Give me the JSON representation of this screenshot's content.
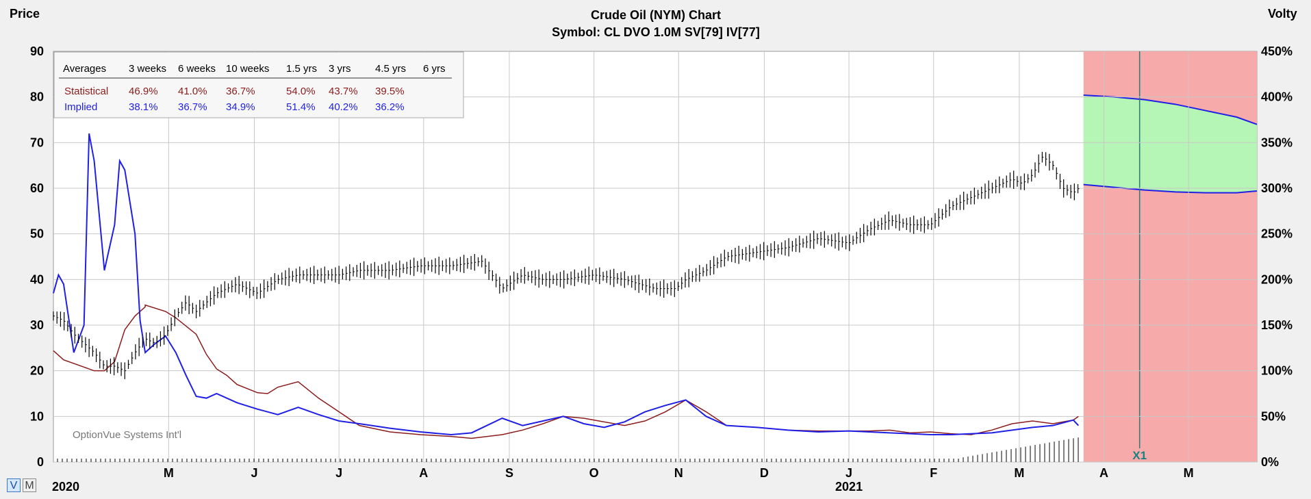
{
  "chart_data": {
    "type": "line",
    "title": "Crude Oil (NYM) Chart",
    "subtitle": "Symbol: CL  DVO 1.0M  SV[79]  IV[77]",
    "left_axis": {
      "label": "Price",
      "ticks": [
        "90",
        "80",
        "70",
        "60",
        "50",
        "40",
        "30",
        "20",
        "10",
        "0"
      ],
      "range": [
        0,
        90
      ]
    },
    "right_axis": {
      "label": "Volty",
      "ticks": [
        "450%",
        "400%",
        "350%",
        "300%",
        "250%",
        "200%",
        "150%",
        "100%",
        "50%",
        "0%"
      ],
      "range": [
        0,
        450
      ]
    },
    "x_labels": [
      "M",
      "J",
      "J",
      "A",
      "S",
      "O",
      "N",
      "D",
      "J",
      "F",
      "M",
      "A",
      "M"
    ],
    "x_label_months": [
      2020.333,
      2020.417,
      2020.5,
      2020.583,
      2020.667,
      2020.75,
      2020.833,
      2020.917,
      2021.0,
      2021.083,
      2021.167,
      2021.25,
      2021.333
    ],
    "year_labels": [
      "2020",
      "2021"
    ],
    "year_label_months": [
      2020.22,
      2021.0
    ],
    "grid": true,
    "x_range": [
      2020.22,
      2021.4
    ],
    "projection_start": 2021.23,
    "projection_marker": {
      "label": "X1",
      "month": 2021.285
    },
    "legend_table": {
      "header": [
        "Averages",
        "3 weeks",
        "6 weeks",
        "10 weeks",
        "1.5 yrs",
        "3 yrs",
        "4.5 yrs",
        "6 yrs"
      ],
      "rows": [
        {
          "name": "Statistical",
          "values": [
            "46.9%",
            "41.0%",
            "36.7%",
            "54.0%",
            "43.7%",
            "39.5%",
            ""
          ]
        },
        {
          "name": "Implied",
          "values": [
            "38.1%",
            "36.7%",
            "34.9%",
            "51.4%",
            "40.2%",
            "36.2%",
            ""
          ]
        }
      ]
    },
    "watermark": "OptionVue Systems Int'l",
    "colors": {
      "price": "#000000",
      "statistical": "#8b1a1a",
      "implied": "#1f1fe6",
      "projection_bg": "#f7aaaa",
      "projection_band": "#b5f5b5"
    },
    "price_series": {
      "x": [
        2020.22,
        2020.23,
        2020.24,
        2020.25,
        2020.26,
        2020.27,
        2020.28,
        2020.29,
        2020.3,
        2020.31,
        2020.32,
        2020.33,
        2020.34,
        2020.35,
        2020.36,
        2020.38,
        2020.4,
        2020.42,
        2020.44,
        2020.46,
        2020.48,
        2020.5,
        2020.52,
        2020.55,
        2020.58,
        2020.61,
        2020.64,
        2020.66,
        2020.68,
        2020.7,
        2020.72,
        2020.75,
        2020.78,
        2020.81,
        2020.83,
        2020.84,
        2020.86,
        2020.88,
        2020.91,
        2020.94,
        2020.97,
        2021.0,
        2021.02,
        2021.04,
        2021.06,
        2021.08,
        2021.1,
        2021.12,
        2021.14,
        2021.16,
        2021.17,
        2021.18,
        2021.19,
        2021.2,
        2021.21,
        2021.22,
        2021.225
      ],
      "y": [
        32,
        31,
        28,
        26,
        24,
        21,
        21,
        20,
        24,
        27,
        26,
        28,
        32,
        35,
        33,
        37,
        39,
        37,
        40,
        41,
        41,
        41,
        42,
        42,
        43,
        43,
        44,
        38,
        41,
        40,
        40,
        41,
        40,
        38,
        38,
        40,
        42,
        45,
        46,
        47,
        49,
        48,
        51,
        53,
        52,
        52,
        56,
        58,
        60,
        62,
        61,
        63,
        67,
        65,
        60,
        59,
        60
      ]
    },
    "statistical_series": {
      "x": [
        2020.22,
        2020.23,
        2020.25,
        2020.26,
        2020.27,
        2020.28,
        2020.29,
        2020.3,
        2020.31,
        2020.31,
        2020.33,
        2020.34,
        2020.36,
        2020.37,
        2020.38,
        2020.39,
        2020.4,
        2020.42,
        2020.43,
        2020.44,
        2020.46,
        2020.48,
        2020.5,
        2020.52,
        2020.55,
        2020.58,
        2020.61,
        2020.63,
        2020.66,
        2020.68,
        2020.7,
        2020.72,
        2020.74,
        2020.76,
        2020.78,
        2020.8,
        2020.82,
        2020.84,
        2020.86,
        2020.88,
        2020.91,
        2020.94,
        2020.97,
        2021.0,
        2021.02,
        2021.04,
        2021.06,
        2021.08,
        2021.1,
        2021.12,
        2021.14,
        2021.16,
        2021.18,
        2021.2,
        2021.22,
        2021.225
      ],
      "y": [
        122,
        112,
        104,
        100,
        100,
        110,
        145,
        160,
        170,
        172,
        165,
        158,
        140,
        118,
        102,
        95,
        85,
        76,
        75,
        82,
        88,
        70,
        55,
        40,
        33,
        30,
        28,
        26,
        30,
        35,
        42,
        50,
        48,
        44,
        40,
        45,
        55,
        68,
        55,
        40,
        38,
        35,
        34,
        34,
        34,
        35,
        32,
        33,
        31,
        30,
        35,
        42,
        45,
        42,
        46,
        50
      ]
    },
    "implied_series": {
      "x": [
        2020.22,
        2020.225,
        2020.23,
        2020.24,
        2020.25,
        2020.255,
        2020.26,
        2020.27,
        2020.28,
        2020.285,
        2020.29,
        2020.3,
        2020.305,
        2020.31,
        2020.32,
        2020.33,
        2020.34,
        2020.35,
        2020.36,
        2020.37,
        2020.38,
        2020.4,
        2020.42,
        2020.44,
        2020.46,
        2020.48,
        2020.5,
        2020.52,
        2020.55,
        2020.58,
        2020.61,
        2020.63,
        2020.66,
        2020.68,
        2020.7,
        2020.72,
        2020.74,
        2020.76,
        2020.78,
        2020.8,
        2020.82,
        2020.84,
        2020.86,
        2020.88,
        2020.91,
        2020.94,
        2020.97,
        2021.0,
        2021.02,
        2021.04,
        2021.06,
        2021.08,
        2021.1,
        2021.12,
        2021.14,
        2021.16,
        2021.18,
        2021.2,
        2021.21,
        2021.22,
        2021.225
      ],
      "y": [
        185,
        205,
        195,
        120,
        150,
        360,
        330,
        210,
        260,
        330,
        320,
        250,
        155,
        120,
        130,
        138,
        120,
        95,
        72,
        70,
        75,
        65,
        58,
        52,
        60,
        52,
        45,
        42,
        37,
        33,
        30,
        32,
        48,
        40,
        45,
        50,
        42,
        38,
        44,
        55,
        62,
        68,
        50,
        40,
        38,
        35,
        33,
        34,
        33,
        32,
        31,
        30,
        30,
        31,
        32,
        35,
        38,
        40,
        43,
        46,
        40
      ]
    },
    "projection_band": {
      "x": [
        2021.23,
        2021.26,
        2021.29,
        2021.32,
        2021.35,
        2021.38,
        2021.4
      ],
      "upper": [
        402,
        400,
        397,
        392,
        385,
        378,
        370
      ],
      "lower": [
        304,
        301,
        298,
        296,
        295,
        295,
        297
      ]
    }
  }
}
